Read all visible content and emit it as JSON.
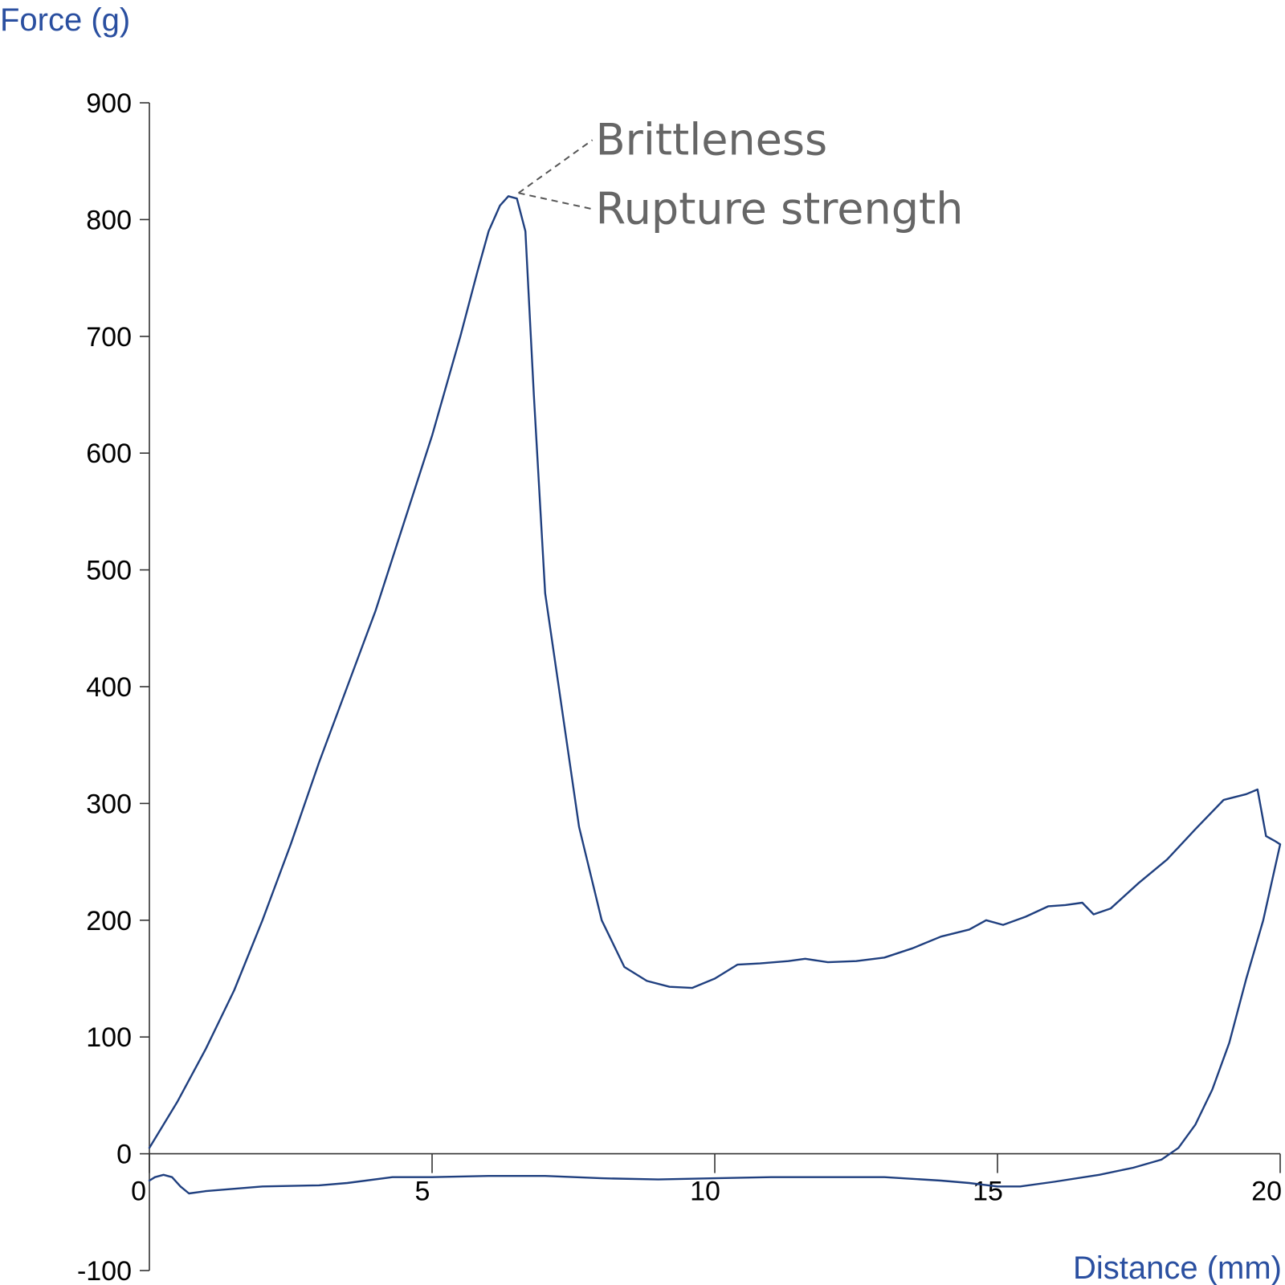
{
  "chart_data": {
    "type": "line",
    "xlabel": "Distance (mm)",
    "ylabel": "Force (g)",
    "xlim": [
      0,
      20
    ],
    "ylim": [
      -100,
      900
    ],
    "xticks": [
      0,
      5,
      10,
      15,
      20
    ],
    "yticks": [
      900,
      800,
      700,
      600,
      500,
      400,
      300,
      200,
      100,
      0,
      -100
    ],
    "grid": false,
    "line_color": "#1f3f7f",
    "label_color": "#2a4fa0",
    "annotations": [
      {
        "text": "Brittleness",
        "x": 6.5,
        "y": 820
      },
      {
        "text": "Rupture strength",
        "x": 6.5,
        "y": 820
      }
    ],
    "series": [
      {
        "values_xy": [
          [
            0,
            5
          ],
          [
            0.5,
            45
          ],
          [
            1,
            90
          ],
          [
            1.5,
            140
          ],
          [
            2,
            200
          ],
          [
            2.5,
            265
          ],
          [
            3,
            335
          ],
          [
            3.5,
            400
          ],
          [
            4,
            465
          ],
          [
            4.5,
            540
          ],
          [
            5,
            615
          ],
          [
            5.5,
            700
          ],
          [
            5.8,
            755
          ],
          [
            6.0,
            790
          ],
          [
            6.2,
            812
          ],
          [
            6.35,
            820
          ],
          [
            6.5,
            818
          ],
          [
            6.65,
            790
          ],
          [
            6.8,
            650
          ],
          [
            7.0,
            480
          ],
          [
            7.3,
            380
          ],
          [
            7.6,
            280
          ],
          [
            8.0,
            200
          ],
          [
            8.4,
            160
          ],
          [
            8.8,
            148
          ],
          [
            9.2,
            143
          ],
          [
            9.6,
            142
          ],
          [
            10.0,
            150
          ],
          [
            10.4,
            162
          ],
          [
            10.8,
            163
          ],
          [
            11.3,
            165
          ],
          [
            11.6,
            167
          ],
          [
            12.0,
            164
          ],
          [
            12.5,
            165
          ],
          [
            13.0,
            168
          ],
          [
            13.5,
            176
          ],
          [
            14.0,
            186
          ],
          [
            14.5,
            192
          ],
          [
            14.8,
            200
          ],
          [
            15.1,
            196
          ],
          [
            15.5,
            203
          ],
          [
            15.9,
            212
          ],
          [
            16.2,
            213
          ],
          [
            16.5,
            215
          ],
          [
            16.7,
            205
          ],
          [
            17.0,
            210
          ],
          [
            17.5,
            232
          ],
          [
            18.0,
            252
          ],
          [
            18.5,
            278
          ],
          [
            19.0,
            303
          ],
          [
            19.4,
            308
          ],
          [
            19.6,
            312
          ],
          [
            19.75,
            272
          ],
          [
            19.9,
            268
          ],
          [
            20.0,
            265
          ],
          [
            19.7,
            200
          ],
          [
            19.4,
            150
          ],
          [
            19.1,
            95
          ],
          [
            18.8,
            55
          ],
          [
            18.5,
            25
          ],
          [
            18.2,
            5
          ],
          [
            17.9,
            -5
          ],
          [
            17.4,
            -12
          ],
          [
            16.8,
            -18
          ],
          [
            16.0,
            -24
          ],
          [
            15.4,
            -28
          ],
          [
            15.0,
            -28
          ],
          [
            14.5,
            -25
          ],
          [
            14.0,
            -23
          ],
          [
            13.0,
            -20
          ],
          [
            12.0,
            -20
          ],
          [
            11.0,
            -20
          ],
          [
            10.0,
            -21
          ],
          [
            9.0,
            -22
          ],
          [
            8.0,
            -21
          ],
          [
            7.0,
            -19
          ],
          [
            6.0,
            -19
          ],
          [
            5.0,
            -20
          ],
          [
            4.3,
            -20
          ],
          [
            3.5,
            -25
          ],
          [
            3.0,
            -27
          ],
          [
            2.0,
            -28
          ],
          [
            1.5,
            -30
          ],
          [
            1.0,
            -32
          ],
          [
            0.7,
            -34
          ],
          [
            0.55,
            -28
          ],
          [
            0.4,
            -20
          ],
          [
            0.25,
            -18
          ],
          [
            0.1,
            -20
          ],
          [
            0.0,
            -23
          ]
        ]
      }
    ]
  }
}
